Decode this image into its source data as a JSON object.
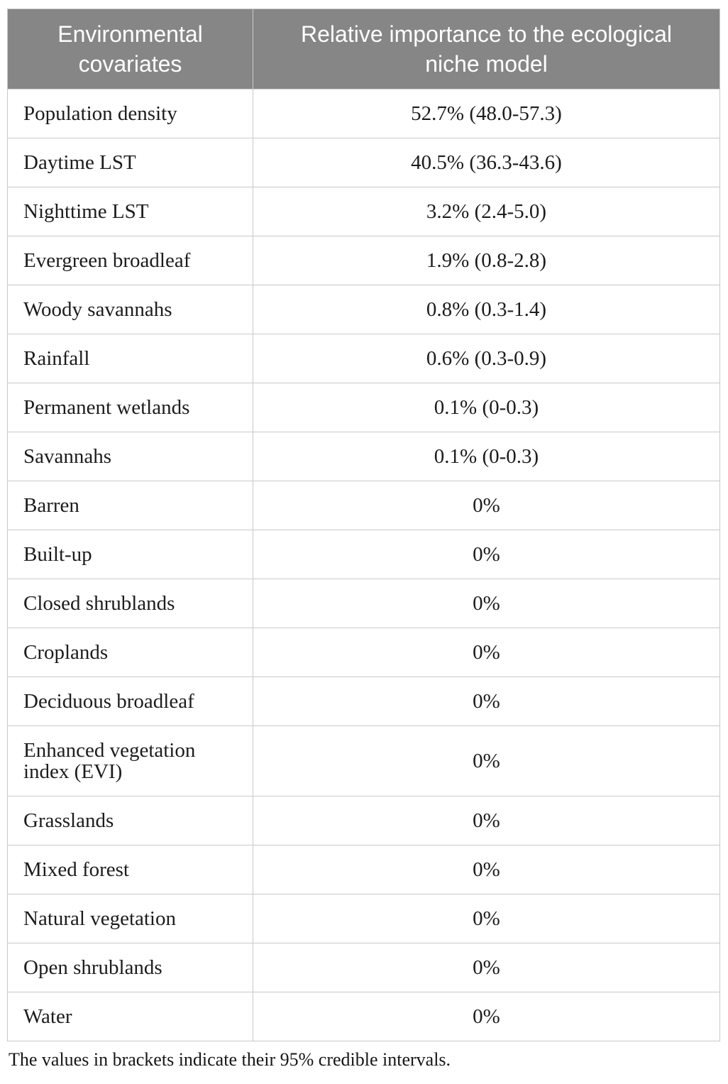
{
  "colors": {
    "header_bg": "#868686",
    "header_text": "#ffffff",
    "border": "#c9c9c9",
    "body_text": "#1c1c1c"
  },
  "table": {
    "header": {
      "col1": "Environmental covariates",
      "col2": "Relative importance to the ecological niche model"
    },
    "rows": [
      {
        "covariate": "Population density",
        "importance": "52.7% (48.0-57.3)"
      },
      {
        "covariate": "Daytime LST",
        "importance": "40.5% (36.3-43.6)"
      },
      {
        "covariate": "Nighttime LST",
        "importance": "3.2% (2.4-5.0)"
      },
      {
        "covariate": "Evergreen broadleaf",
        "importance": "1.9% (0.8-2.8)"
      },
      {
        "covariate": "Woody savannahs",
        "importance": "0.8% (0.3-1.4)"
      },
      {
        "covariate": "Rainfall",
        "importance": "0.6% (0.3-0.9)"
      },
      {
        "covariate": "Permanent wetlands",
        "importance": "0.1% (0-0.3)"
      },
      {
        "covariate": "Savannahs",
        "importance": "0.1% (0-0.3)"
      },
      {
        "covariate": "Barren",
        "importance": "0%"
      },
      {
        "covariate": "Built-up",
        "importance": "0%"
      },
      {
        "covariate": "Closed shrublands",
        "importance": "0%"
      },
      {
        "covariate": "Croplands",
        "importance": "0%"
      },
      {
        "covariate": "Deciduous broadleaf",
        "importance": "0%"
      },
      {
        "covariate": "Enhanced vegetation index (EVI)",
        "importance": "0%"
      },
      {
        "covariate": "Grasslands",
        "importance": "0%"
      },
      {
        "covariate": "Mixed forest",
        "importance": "0%"
      },
      {
        "covariate": "Natural vegetation",
        "importance": "0%"
      },
      {
        "covariate": "Open shrublands",
        "importance": "0%"
      },
      {
        "covariate": "Water",
        "importance": "0%"
      }
    ],
    "footnote": "The values in brackets indicate their 95% credible intervals."
  }
}
